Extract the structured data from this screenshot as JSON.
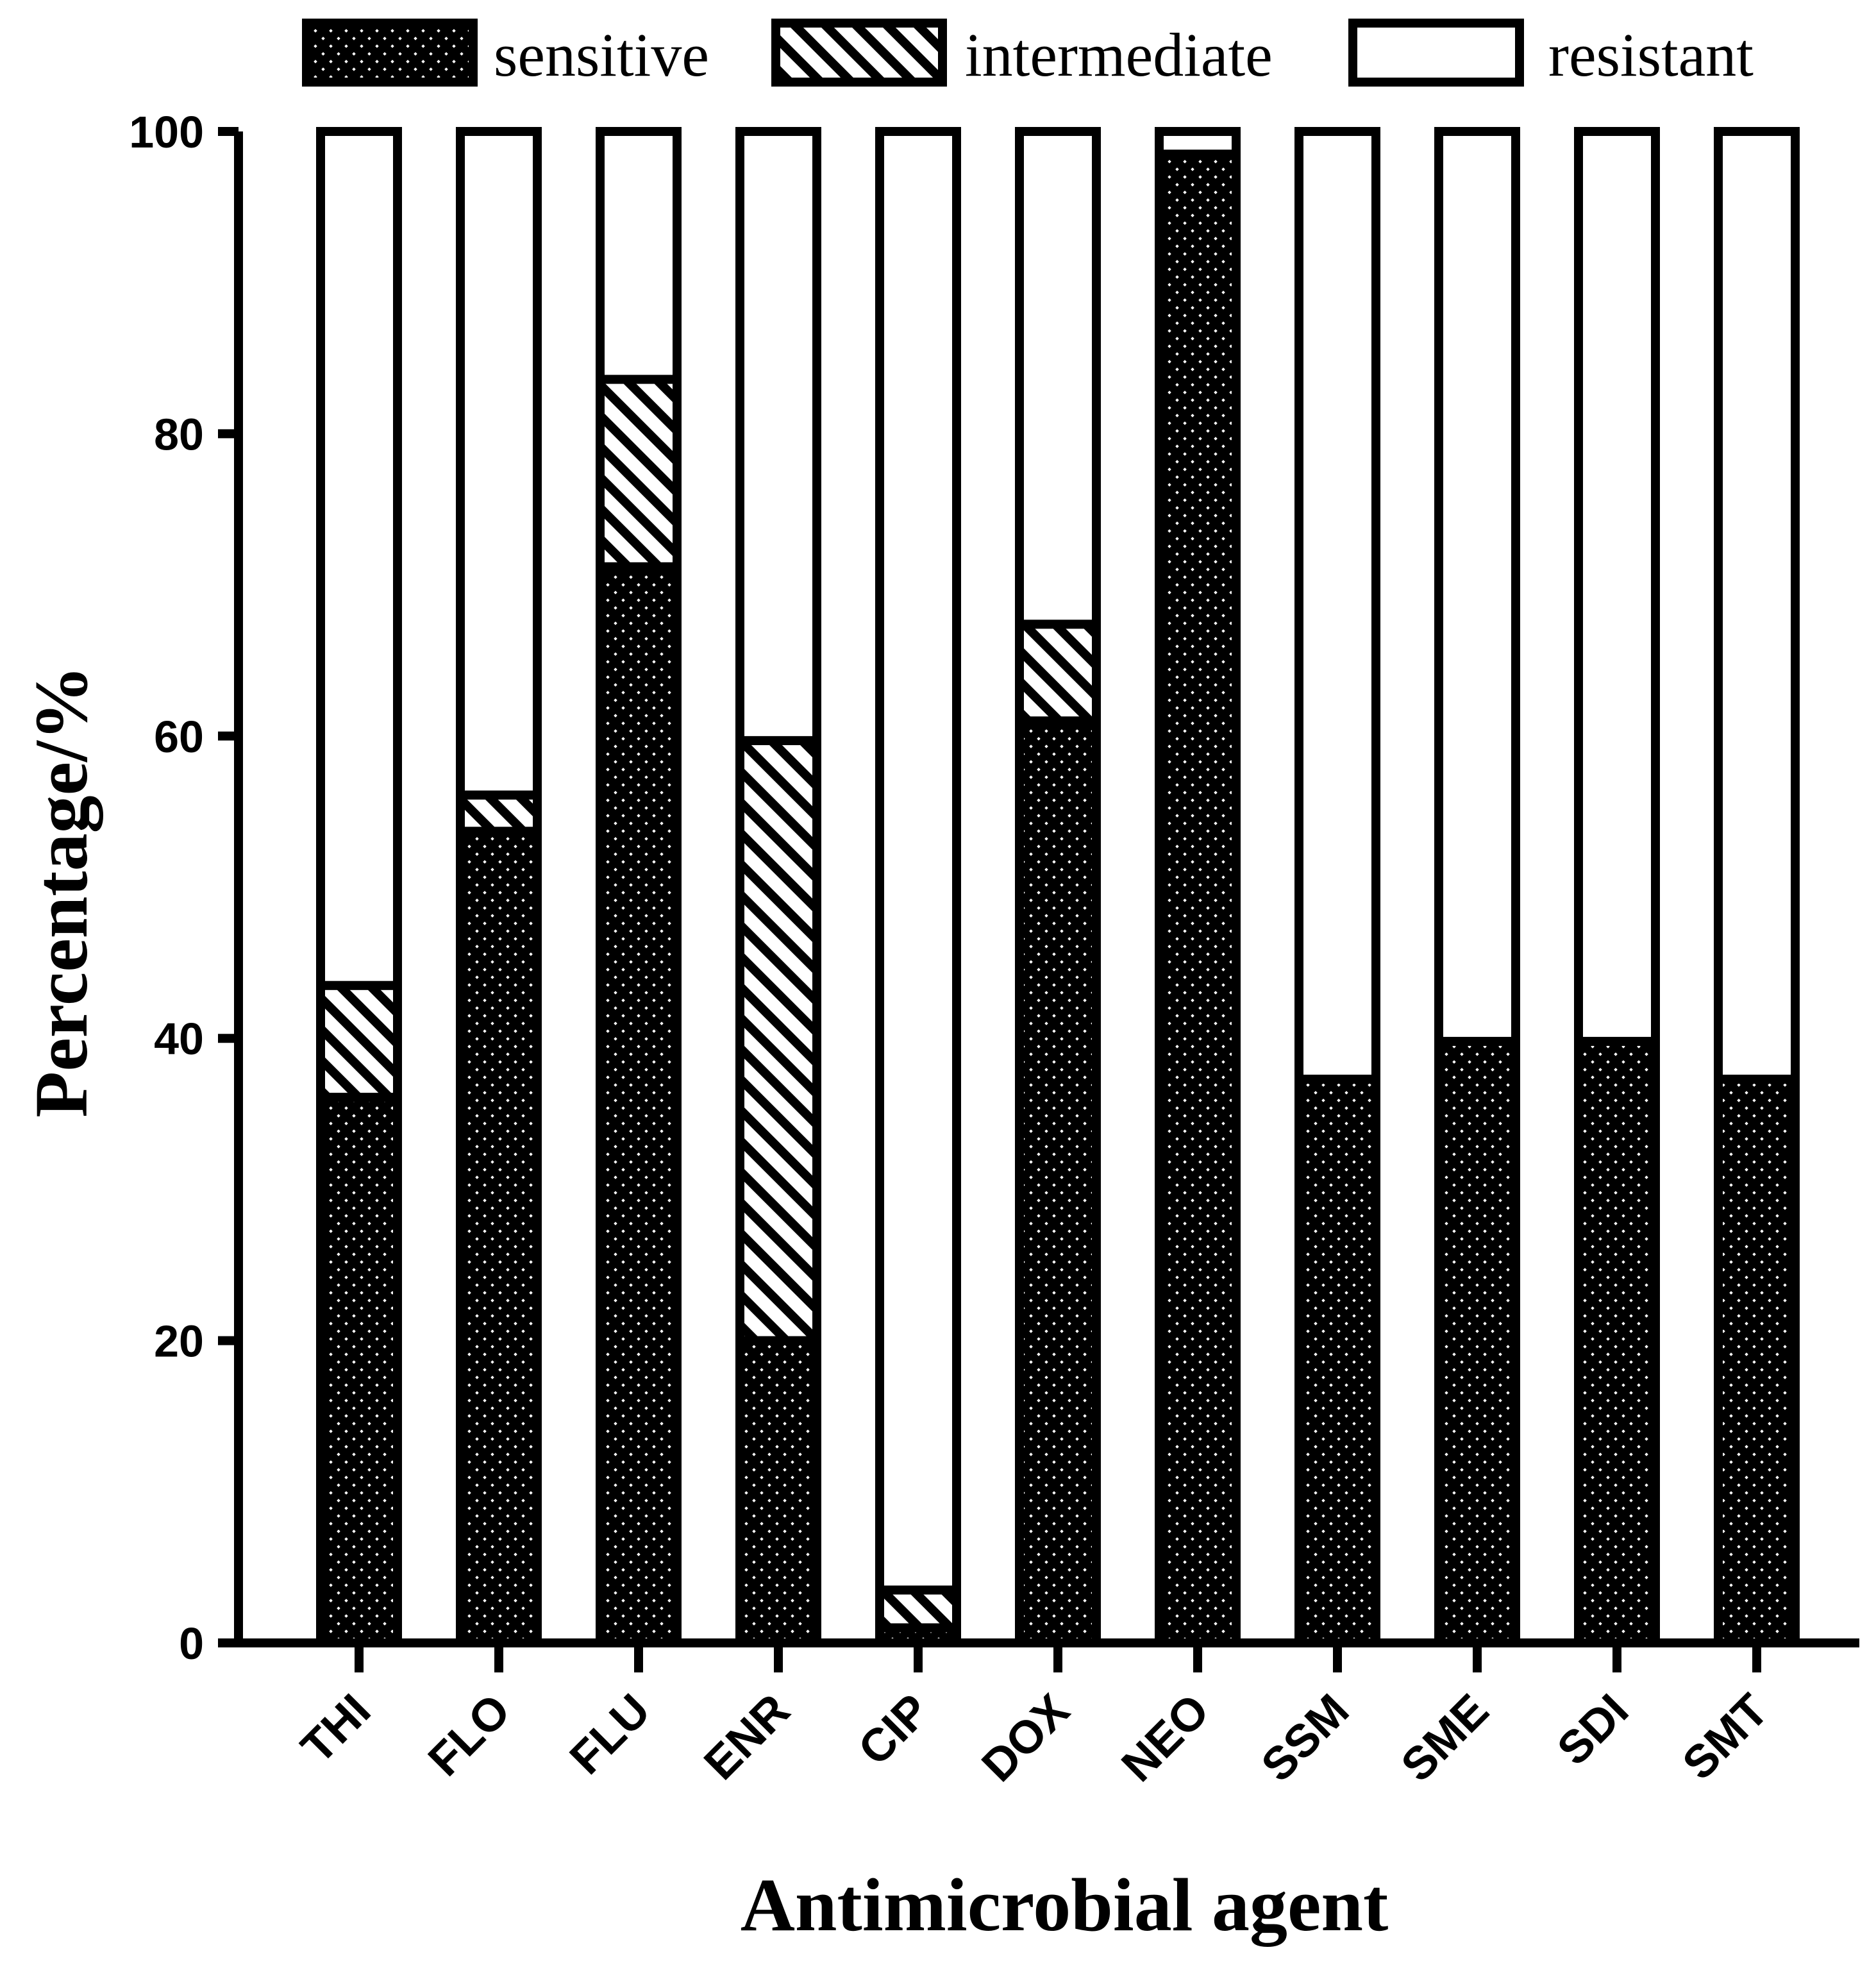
{
  "chart_data": {
    "type": "bar",
    "stacked": true,
    "title": "",
    "xlabel": "Antimicrobial agent",
    "ylabel": "Percentage/%",
    "ylim": [
      0,
      100
    ],
    "yticks": [
      "0",
      "20",
      "40",
      "60",
      "80",
      "100"
    ],
    "grid": false,
    "legend_position": "top",
    "categories": [
      "THI",
      "FLO",
      "FLU",
      "ENR",
      "CIP",
      "DOX",
      "NEO",
      "SSM",
      "SME",
      "SDI",
      "SMT"
    ],
    "series": [
      {
        "name": "sensitive",
        "pattern": "crosshatch",
        "values": [
          36.1,
          53.7,
          71.2,
          20.0,
          1.0,
          61.0,
          98.5,
          37.3,
          39.8,
          39.8,
          37.3
        ]
      },
      {
        "name": "intermediate",
        "pattern": "diagonal",
        "values": [
          7.4,
          2.4,
          12.4,
          39.7,
          2.5,
          6.4,
          0.0,
          0.0,
          0.0,
          0.0,
          0.0
        ]
      },
      {
        "name": "resistant",
        "pattern": "solid-white",
        "values": [
          56.5,
          43.9,
          16.4,
          40.3,
          96.5,
          32.6,
          1.5,
          62.7,
          60.2,
          60.2,
          62.7
        ]
      }
    ]
  }
}
